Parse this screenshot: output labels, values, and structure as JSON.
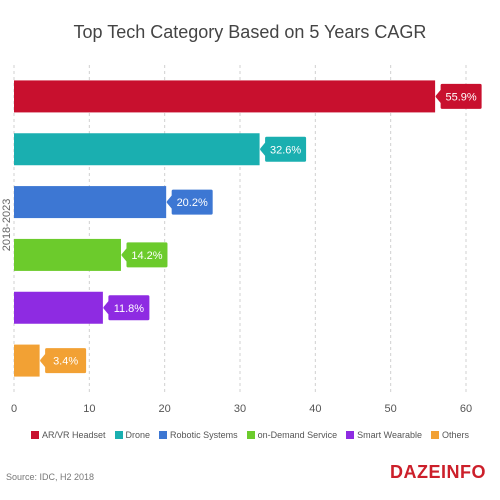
{
  "chart_data": {
    "type": "bar",
    "orientation": "horizontal",
    "title": "Top Tech Category Based on 5 Years CAGR",
    "ylabel": "2018-2023",
    "xlabel": "",
    "categories": [
      "AR/VR Headset",
      "Drone",
      "Robotic Systems",
      "on-Demand Service",
      "Smart Wearable",
      "Others"
    ],
    "values": [
      55.9,
      32.6,
      20.2,
      14.2,
      11.8,
      3.4
    ],
    "data_labels": [
      "55.9%",
      "32.6%",
      "20.2%",
      "14.2%",
      "11.8%",
      "3.4%"
    ],
    "colors": [
      "#c8102e",
      "#1aafb0",
      "#3d77d3",
      "#6ccb2c",
      "#8e2be2",
      "#f2a134"
    ],
    "xlim": [
      0,
      60
    ],
    "xticks": [
      0,
      10,
      20,
      30,
      40,
      50,
      60
    ],
    "grid": "vertical dashed",
    "legend_position": "bottom"
  },
  "source": "Source: IDC, H2 2018",
  "logo": "DAZEINFO"
}
